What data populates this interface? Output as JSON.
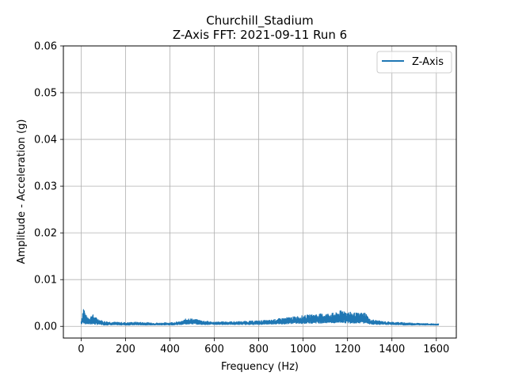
{
  "chart_data": {
    "type": "line",
    "title": "Churchill_Stadium",
    "subtitle": "Z-Axis FFT: 2021-09-11 Run 6",
    "xlabel": "Frequency (Hz)",
    "ylabel": "Amplitude - Acceleration (g)",
    "xlim": [
      -80,
      1690
    ],
    "ylim": [
      -0.0025,
      0.06
    ],
    "xticks": [
      0,
      200,
      400,
      600,
      800,
      1000,
      1200,
      1400,
      1600
    ],
    "xtick_labels": [
      "0",
      "200",
      "400",
      "600",
      "800",
      "1000",
      "1200",
      "1400",
      "1600"
    ],
    "yticks": [
      0.0,
      0.01,
      0.02,
      0.03,
      0.04,
      0.05,
      0.06
    ],
    "ytick_labels": [
      "0.00",
      "0.01",
      "0.02",
      "0.03",
      "0.04",
      "0.05",
      "0.06"
    ],
    "grid": true,
    "legend_position": "top-right",
    "series": [
      {
        "name": "Z-Axis",
        "color": "#1f77b4",
        "envelope": {
          "x": [
            0,
            5,
            10,
            15,
            20,
            30,
            40,
            50,
            60,
            80,
            100,
            150,
            200,
            250,
            300,
            350,
            400,
            450,
            480,
            500,
            550,
            600,
            650,
            700,
            750,
            800,
            850,
            900,
            950,
            1000,
            1050,
            1100,
            1150,
            1180,
            1200,
            1250,
            1280,
            1300,
            1350,
            1400,
            1450,
            1500,
            1550,
            1600,
            1610
          ],
          "upper": [
            0.0012,
            0.0025,
            0.0043,
            0.0038,
            0.0025,
            0.0022,
            0.002,
            0.0028,
            0.0022,
            0.0016,
            0.0012,
            0.001,
            0.0009,
            0.001,
            0.0009,
            0.0008,
            0.0009,
            0.0011,
            0.0019,
            0.0017,
            0.0013,
            0.001,
            0.0011,
            0.0011,
            0.0012,
            0.0013,
            0.0014,
            0.0018,
            0.0021,
            0.0024,
            0.0027,
            0.0028,
            0.003,
            0.0037,
            0.0032,
            0.0029,
            0.0031,
            0.0016,
            0.0012,
            0.001,
            0.0009,
            0.0008,
            0.0007,
            0.0006,
            0.0006
          ],
          "lower": [
            0.0003,
            0.0005,
            0.0006,
            0.0005,
            0.0004,
            0.0004,
            0.0003,
            0.0004,
            0.0003,
            0.0003,
            0.0002,
            0.0002,
            0.0002,
            0.0002,
            0.0002,
            0.0002,
            0.0002,
            0.0003,
            0.0004,
            0.0004,
            0.0003,
            0.0003,
            0.0003,
            0.0003,
            0.0003,
            0.0003,
            0.0004,
            0.0004,
            0.0005,
            0.0005,
            0.0006,
            0.0006,
            0.0006,
            0.0007,
            0.0006,
            0.0006,
            0.0006,
            0.0004,
            0.0003,
            0.0003,
            0.0002,
            0.0002,
            0.0002,
            0.0002,
            0.0002
          ]
        }
      }
    ]
  }
}
